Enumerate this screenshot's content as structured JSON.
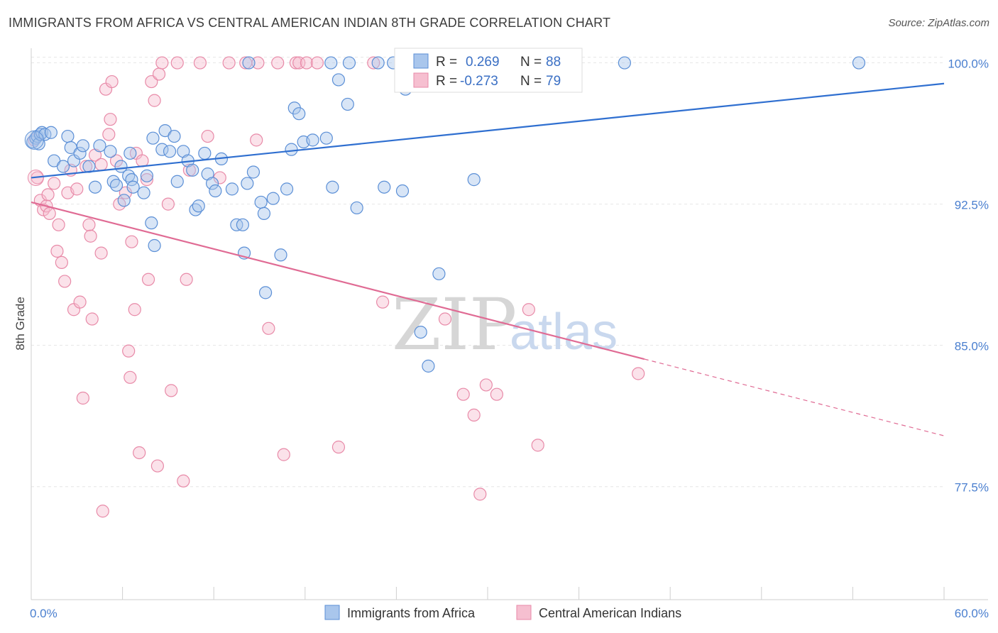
{
  "title": "IMMIGRANTS FROM AFRICA VS CENTRAL AMERICAN INDIAN 8TH GRADE CORRELATION CHART",
  "source": "Source: ZipAtlas.com",
  "watermark": {
    "zip": "ZIP",
    "atlas": "atlas"
  },
  "stats": [
    {
      "r_label": "R =",
      "r_value": "0.269",
      "n_label": "N =",
      "n_value": "88"
    },
    {
      "r_label": "R =",
      "r_value": "-0.273",
      "n_label": "N =",
      "n_value": "79"
    }
  ],
  "legend": [
    {
      "label": "Immigrants from Africa"
    },
    {
      "label": "Central American Indians"
    }
  ],
  "chart_data": {
    "type": "scatter",
    "title": "IMMIGRANTS FROM AFRICA VS CENTRAL AMERICAN INDIAN 8TH GRADE CORRELATION CHART",
    "xlabel": "",
    "ylabel": "8th Grade",
    "xlim": [
      0,
      60
    ],
    "ylim": [
      71.5,
      101
    ],
    "x_tick_labels": [
      "0.0%",
      "60.0%"
    ],
    "y_ticks": [
      77.5,
      85.0,
      92.5,
      100.0
    ],
    "y_tick_labels": [
      "77.5%",
      "85.0%",
      "92.5%",
      "100.0%"
    ],
    "grid": true,
    "legend_position": "bottom-center",
    "colors": {
      "africa_fill": "#a9c6ec",
      "africa_stroke": "#5b8fd6",
      "africa_line": "#2f6fd0",
      "cai_fill": "#f6bfd0",
      "cai_stroke": "#e88aa8",
      "cai_line": "#e06b94",
      "axis_label": "#4a7fcf"
    },
    "series": [
      {
        "name": "Immigrants from Africa",
        "r": 0.269,
        "n": 88,
        "trend": {
          "x": [
            0,
            60
          ],
          "y": [
            93.9,
            98.9
          ],
          "solid_to": 60
        },
        "points": [
          [
            0.1,
            95.8
          ],
          [
            0.3,
            96.0
          ],
          [
            0.4,
            96.1
          ],
          [
            0.5,
            95.7
          ],
          [
            0.6,
            96.2
          ],
          [
            0.7,
            96.3
          ],
          [
            0.9,
            96.2
          ],
          [
            1.3,
            96.3
          ],
          [
            1.5,
            94.8
          ],
          [
            2.1,
            94.5
          ],
          [
            2.4,
            96.1
          ],
          [
            2.6,
            95.5
          ],
          [
            2.8,
            94.8
          ],
          [
            3.2,
            95.2
          ],
          [
            3.4,
            95.6
          ],
          [
            3.8,
            94.5
          ],
          [
            4.2,
            93.4
          ],
          [
            4.5,
            95.6
          ],
          [
            5.2,
            95.3
          ],
          [
            5.4,
            93.7
          ],
          [
            5.6,
            93.5
          ],
          [
            5.9,
            94.5
          ],
          [
            6.1,
            92.7
          ],
          [
            6.4,
            94.0
          ],
          [
            6.6,
            93.8
          ],
          [
            6.7,
            93.4
          ],
          [
            6.5,
            95.2
          ],
          [
            7.4,
            93.1
          ],
          [
            7.6,
            94.0
          ],
          [
            7.9,
            91.5
          ],
          [
            8.0,
            96.0
          ],
          [
            8.1,
            90.3
          ],
          [
            8.6,
            95.4
          ],
          [
            8.8,
            96.4
          ],
          [
            9.1,
            95.3
          ],
          [
            9.4,
            96.1
          ],
          [
            9.6,
            93.7
          ],
          [
            10.0,
            95.3
          ],
          [
            10.3,
            94.8
          ],
          [
            10.6,
            94.3
          ],
          [
            10.8,
            92.2
          ],
          [
            11.0,
            92.4
          ],
          [
            11.4,
            95.2
          ],
          [
            11.6,
            94.1
          ],
          [
            11.9,
            93.6
          ],
          [
            12.1,
            93.2
          ],
          [
            12.5,
            94.9
          ],
          [
            13.2,
            93.3
          ],
          [
            13.5,
            91.4
          ],
          [
            13.9,
            91.4
          ],
          [
            14.0,
            89.9
          ],
          [
            14.2,
            93.6
          ],
          [
            14.6,
            94.2
          ],
          [
            15.1,
            92.6
          ],
          [
            15.3,
            92.0
          ],
          [
            15.4,
            87.8
          ],
          [
            15.9,
            92.8
          ],
          [
            16.4,
            89.8
          ],
          [
            16.8,
            93.3
          ],
          [
            17.1,
            95.4
          ],
          [
            17.3,
            97.6
          ],
          [
            17.6,
            97.3
          ],
          [
            17.9,
            95.8
          ],
          [
            18.5,
            95.9
          ],
          [
            19.4,
            96.0
          ],
          [
            19.8,
            93.4
          ],
          [
            20.2,
            99.1
          ],
          [
            20.8,
            97.8
          ],
          [
            21.4,
            92.3
          ],
          [
            23.2,
            93.4
          ],
          [
            24.4,
            93.2
          ],
          [
            24.6,
            98.6
          ],
          [
            25.6,
            85.7
          ],
          [
            26.1,
            83.9
          ],
          [
            26.8,
            88.8
          ],
          [
            29.1,
            93.8
          ],
          [
            14.3,
            100.0
          ],
          [
            19.7,
            100.0
          ],
          [
            20.9,
            100.0
          ],
          [
            22.8,
            100.0
          ],
          [
            23.8,
            100.0
          ],
          [
            25.9,
            100.0
          ],
          [
            32.8,
            100.0
          ],
          [
            33.8,
            100.0
          ],
          [
            34.7,
            100.0
          ],
          [
            35.2,
            100.0
          ],
          [
            39.0,
            100.0
          ],
          [
            54.4,
            100.0
          ]
        ]
      },
      {
        "name": "Central American Indians",
        "r": -0.273,
        "n": 79,
        "trend": {
          "x": [
            0,
            60
          ],
          "y": [
            92.6,
            80.2
          ],
          "solid_to": 40.3
        },
        "points": [
          [
            0.2,
            95.9
          ],
          [
            0.4,
            93.9
          ],
          [
            0.6,
            92.7
          ],
          [
            0.8,
            92.2
          ],
          [
            1.0,
            92.4
          ],
          [
            1.1,
            93.0
          ],
          [
            1.2,
            92.0
          ],
          [
            1.5,
            93.6
          ],
          [
            1.8,
            91.4
          ],
          [
            1.7,
            90.0
          ],
          [
            2.0,
            89.4
          ],
          [
            2.2,
            88.4
          ],
          [
            2.4,
            93.1
          ],
          [
            2.6,
            94.3
          ],
          [
            2.8,
            86.9
          ],
          [
            3.0,
            93.3
          ],
          [
            3.2,
            87.3
          ],
          [
            3.4,
            82.2
          ],
          [
            3.6,
            94.5
          ],
          [
            3.8,
            91.4
          ],
          [
            3.9,
            90.8
          ],
          [
            4.0,
            86.4
          ],
          [
            4.2,
            95.1
          ],
          [
            4.6,
            94.6
          ],
          [
            4.6,
            89.9
          ],
          [
            4.7,
            76.2
          ],
          [
            4.9,
            98.6
          ],
          [
            5.1,
            96.2
          ],
          [
            5.2,
            97.0
          ],
          [
            5.3,
            99.0
          ],
          [
            5.6,
            94.8
          ],
          [
            5.8,
            92.5
          ],
          [
            6.2,
            93.1
          ],
          [
            6.4,
            84.7
          ],
          [
            6.5,
            83.3
          ],
          [
            6.6,
            90.5
          ],
          [
            6.8,
            86.9
          ],
          [
            6.9,
            95.2
          ],
          [
            7.1,
            79.3
          ],
          [
            7.3,
            94.8
          ],
          [
            7.6,
            93.8
          ],
          [
            7.7,
            88.5
          ],
          [
            7.9,
            99.0
          ],
          [
            8.1,
            98.0
          ],
          [
            8.3,
            78.6
          ],
          [
            8.4,
            99.4
          ],
          [
            8.6,
            100.0
          ],
          [
            9.0,
            92.5
          ],
          [
            9.2,
            82.6
          ],
          [
            9.6,
            100.0
          ],
          [
            10.0,
            77.8
          ],
          [
            10.2,
            88.5
          ],
          [
            10.4,
            94.3
          ],
          [
            11.1,
            100.0
          ],
          [
            11.6,
            96.1
          ],
          [
            12.4,
            93.9
          ],
          [
            13.0,
            100.0
          ],
          [
            14.1,
            100.0
          ],
          [
            14.8,
            95.9
          ],
          [
            14.9,
            100.0
          ],
          [
            15.6,
            85.9
          ],
          [
            16.2,
            100.0
          ],
          [
            16.6,
            79.2
          ],
          [
            17.4,
            100.0
          ],
          [
            17.6,
            100.0
          ],
          [
            18.1,
            100.0
          ],
          [
            18.8,
            100.0
          ],
          [
            20.2,
            79.6
          ],
          [
            22.5,
            100.0
          ],
          [
            23.1,
            87.3
          ],
          [
            27.2,
            86.4
          ],
          [
            28.4,
            82.4
          ],
          [
            29.1,
            81.3
          ],
          [
            29.5,
            77.1
          ],
          [
            29.9,
            82.9
          ],
          [
            30.6,
            82.4
          ],
          [
            32.7,
            86.9
          ],
          [
            33.3,
            79.7
          ],
          [
            39.9,
            83.5
          ]
        ]
      }
    ]
  }
}
